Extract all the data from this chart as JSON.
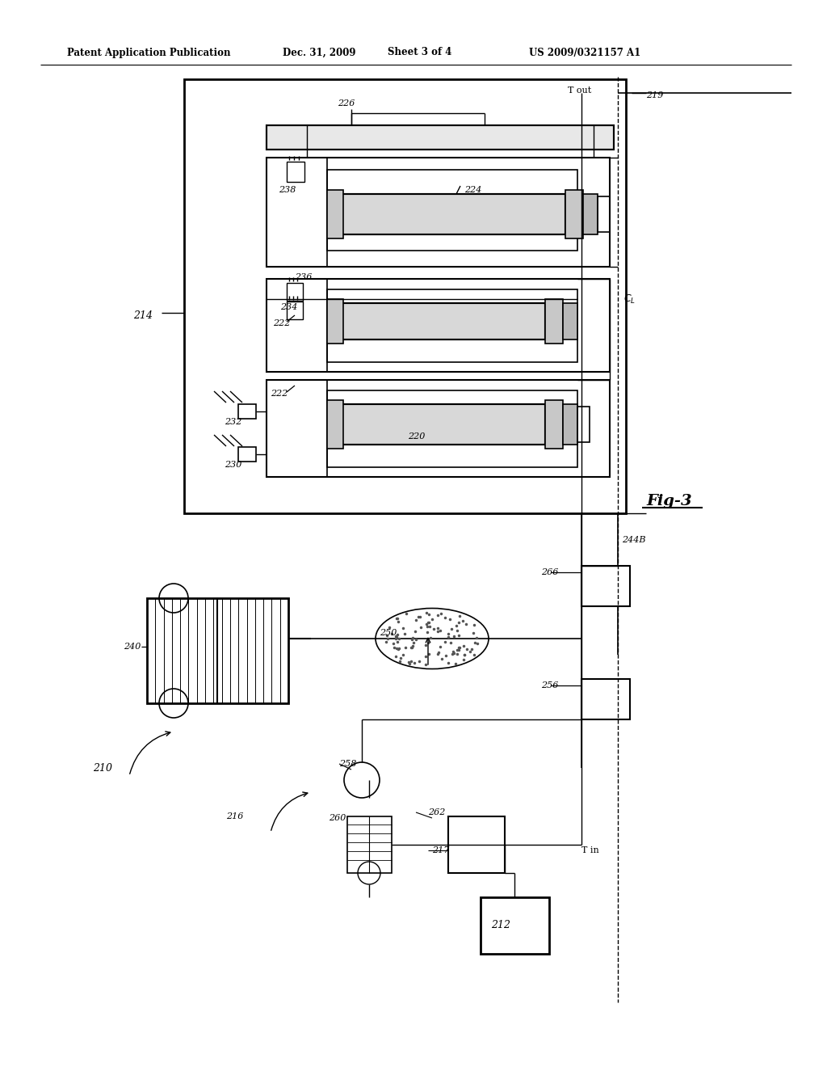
{
  "bg_color": "#ffffff",
  "line_color": "#000000",
  "header_text": "Patent Application Publication",
  "header_date": "Dec. 31, 2009",
  "header_sheet": "Sheet 3 of 4",
  "header_patent": "US 2009/0321157 A1",
  "fig_label": "Fig-3"
}
